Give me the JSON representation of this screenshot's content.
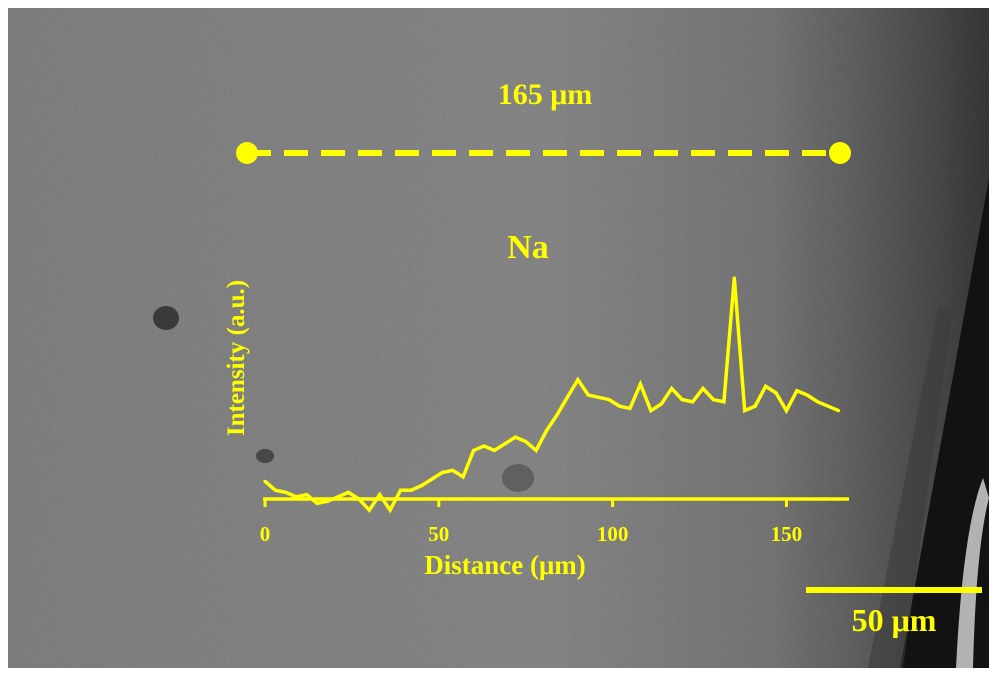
{
  "colors": {
    "accent": "#ffff00",
    "background_mid": "#8a8a8a",
    "background_dark": "#5e5e5e",
    "edge_dark": "#141414"
  },
  "image": {
    "line_scan_length_label": "165 μm",
    "scale_bar_label": "50 μm",
    "scale_bar_value_um": 50
  },
  "chart_data": {
    "type": "line",
    "title": "Na",
    "xlabel": "Distance (μm)",
    "ylabel": "Intensity (a.u.)",
    "xlim": [
      0,
      168
    ],
    "ylim": [
      0,
      1
    ],
    "x_ticks": [
      0,
      50,
      100,
      150
    ],
    "x_tick_labels": [
      "0",
      "50",
      "100",
      "150"
    ],
    "y_ticks": [],
    "grid": false,
    "legend": "none",
    "series": [
      {
        "color": "#ffff00",
        "x": [
          0,
          3,
          6,
          9,
          12,
          15,
          18,
          21,
          24,
          27,
          30,
          33,
          36,
          39,
          42,
          45,
          48,
          51,
          54,
          57,
          60,
          63,
          66,
          69,
          72,
          75,
          78,
          81,
          84,
          87,
          90,
          93,
          96,
          99,
          102,
          105,
          108,
          111,
          114,
          117,
          120,
          123,
          126,
          129,
          132,
          135,
          138,
          141,
          144,
          147,
          150,
          153,
          156,
          159,
          162,
          165
        ],
        "y": [
          0.08,
          0.04,
          0.03,
          0.01,
          0.02,
          -0.02,
          -0.01,
          0.01,
          0.03,
          0.0,
          -0.05,
          0.02,
          -0.05,
          0.04,
          0.04,
          0.06,
          0.09,
          0.12,
          0.13,
          0.1,
          0.22,
          0.24,
          0.22,
          0.25,
          0.28,
          0.26,
          0.22,
          0.31,
          0.38,
          0.46,
          0.54,
          0.47,
          0.46,
          0.45,
          0.42,
          0.41,
          0.52,
          0.4,
          0.43,
          0.5,
          0.45,
          0.44,
          0.5,
          0.45,
          0.44,
          1.0,
          0.4,
          0.42,
          0.51,
          0.48,
          0.4,
          0.49,
          0.47,
          0.44,
          0.42,
          0.4
        ]
      }
    ]
  }
}
